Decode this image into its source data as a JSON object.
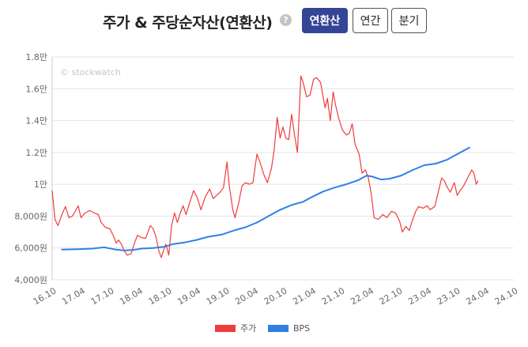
{
  "header": {
    "title": "주가 & 주당순자산(연환산)",
    "help_glyph": "?",
    "tabs": [
      {
        "label": "연환산",
        "active": true
      },
      {
        "label": "연간",
        "active": false
      },
      {
        "label": "분기",
        "active": false
      }
    ]
  },
  "colors": {
    "price": "#f03c3c",
    "bps": "#2f80e4",
    "active_tab": "#344595"
  },
  "chart_data": {
    "type": "line",
    "watermark": "© stockwatch",
    "y_ticks": [
      {
        "v": 4000,
        "label": "4,000원"
      },
      {
        "v": 6000,
        "label": "6,000원"
      },
      {
        "v": 8000,
        "label": "8,000원"
      },
      {
        "v": 10000,
        "label": "1만"
      },
      {
        "v": 12000,
        "label": "1.2만"
      },
      {
        "v": 14000,
        "label": "1.4만"
      },
      {
        "v": 16000,
        "label": "1.6만"
      },
      {
        "v": 18000,
        "label": "1.8만"
      }
    ],
    "ylim": [
      4000,
      18000
    ],
    "x_ticks": [
      {
        "t": 2016.75,
        "label": "16.10"
      },
      {
        "t": 2017.25,
        "label": "17.04"
      },
      {
        "t": 2017.75,
        "label": "17.10"
      },
      {
        "t": 2018.25,
        "label": "18.04"
      },
      {
        "t": 2018.75,
        "label": "18.10"
      },
      {
        "t": 2019.25,
        "label": "19.04"
      },
      {
        "t": 2019.75,
        "label": "19.10"
      },
      {
        "t": 2020.25,
        "label": "20.04"
      },
      {
        "t": 2020.75,
        "label": "20.10"
      },
      {
        "t": 2021.25,
        "label": "21.04"
      },
      {
        "t": 2021.75,
        "label": "21.10"
      },
      {
        "t": 2022.25,
        "label": "22.04"
      },
      {
        "t": 2022.75,
        "label": "22.10"
      },
      {
        "t": 2023.25,
        "label": "23.04"
      },
      {
        "t": 2023.75,
        "label": "23.10"
      },
      {
        "t": 2024.25,
        "label": "24.04"
      },
      {
        "t": 2024.75,
        "label": "24.10"
      }
    ],
    "xlim": [
      2016.75,
      2024.75
    ],
    "series": [
      {
        "name": "주가",
        "color": "#f03c3c",
        "points": [
          [
            2016.75,
            9600
          ],
          [
            2016.8,
            7800
          ],
          [
            2016.85,
            7400
          ],
          [
            2016.92,
            8100
          ],
          [
            2016.98,
            8600
          ],
          [
            2017.04,
            7900
          ],
          [
            2017.1,
            8000
          ],
          [
            2017.15,
            8300
          ],
          [
            2017.2,
            8650
          ],
          [
            2017.25,
            7900
          ],
          [
            2017.32,
            8200
          ],
          [
            2017.4,
            8350
          ],
          [
            2017.48,
            8200
          ],
          [
            2017.55,
            8100
          ],
          [
            2017.6,
            7600
          ],
          [
            2017.67,
            7300
          ],
          [
            2017.75,
            7200
          ],
          [
            2017.82,
            6700
          ],
          [
            2017.86,
            6300
          ],
          [
            2017.9,
            6500
          ],
          [
            2017.95,
            6250
          ],
          [
            2018.0,
            5800
          ],
          [
            2018.05,
            5550
          ],
          [
            2018.12,
            5650
          ],
          [
            2018.18,
            6350
          ],
          [
            2018.23,
            6800
          ],
          [
            2018.3,
            6650
          ],
          [
            2018.37,
            6600
          ],
          [
            2018.45,
            7400
          ],
          [
            2018.5,
            7200
          ],
          [
            2018.55,
            6700
          ],
          [
            2018.6,
            5800
          ],
          [
            2018.64,
            5400
          ],
          [
            2018.68,
            5850
          ],
          [
            2018.72,
            6250
          ],
          [
            2018.77,
            5550
          ],
          [
            2018.82,
            7400
          ],
          [
            2018.87,
            8200
          ],
          [
            2018.92,
            7600
          ],
          [
            2018.97,
            8200
          ],
          [
            2019.02,
            8650
          ],
          [
            2019.07,
            8100
          ],
          [
            2019.13,
            8800
          ],
          [
            2019.2,
            9600
          ],
          [
            2019.26,
            9200
          ],
          [
            2019.33,
            8400
          ],
          [
            2019.4,
            9200
          ],
          [
            2019.48,
            9700
          ],
          [
            2019.54,
            9100
          ],
          [
            2019.6,
            9300
          ],
          [
            2019.66,
            9500
          ],
          [
            2019.72,
            9800
          ],
          [
            2019.78,
            11400
          ],
          [
            2019.82,
            9900
          ],
          [
            2019.88,
            8400
          ],
          [
            2019.92,
            7900
          ],
          [
            2019.98,
            8800
          ],
          [
            2020.04,
            9900
          ],
          [
            2020.1,
            10100
          ],
          [
            2020.17,
            10000
          ],
          [
            2020.23,
            10100
          ],
          [
            2020.3,
            11900
          ],
          [
            2020.36,
            11300
          ],
          [
            2020.42,
            10600
          ],
          [
            2020.48,
            10100
          ],
          [
            2020.55,
            11000
          ],
          [
            2020.6,
            12200
          ],
          [
            2020.65,
            14200
          ],
          [
            2020.7,
            12900
          ],
          [
            2020.75,
            13600
          ],
          [
            2020.8,
            12900
          ],
          [
            2020.85,
            12800
          ],
          [
            2020.9,
            14400
          ],
          [
            2020.95,
            13100
          ],
          [
            2021.0,
            12000
          ],
          [
            2021.06,
            16800
          ],
          [
            2021.1,
            16400
          ],
          [
            2021.16,
            15500
          ],
          [
            2021.22,
            15600
          ],
          [
            2021.28,
            16600
          ],
          [
            2021.33,
            16700
          ],
          [
            2021.4,
            16400
          ],
          [
            2021.44,
            15600
          ],
          [
            2021.48,
            14800
          ],
          [
            2021.52,
            15400
          ],
          [
            2021.57,
            14000
          ],
          [
            2021.62,
            15800
          ],
          [
            2021.66,
            15000
          ],
          [
            2021.72,
            14100
          ],
          [
            2021.78,
            13400
          ],
          [
            2021.85,
            13100
          ],
          [
            2021.9,
            13200
          ],
          [
            2021.95,
            13800
          ],
          [
            2022.0,
            12500
          ],
          [
            2022.07,
            11900
          ],
          [
            2022.12,
            10700
          ],
          [
            2022.18,
            10900
          ],
          [
            2022.23,
            10400
          ],
          [
            2022.28,
            9400
          ],
          [
            2022.33,
            7900
          ],
          [
            2022.4,
            7800
          ],
          [
            2022.48,
            8100
          ],
          [
            2022.55,
            7900
          ],
          [
            2022.63,
            8300
          ],
          [
            2022.7,
            8200
          ],
          [
            2022.77,
            7700
          ],
          [
            2022.82,
            7000
          ],
          [
            2022.88,
            7350
          ],
          [
            2022.94,
            7100
          ],
          [
            2022.98,
            7600
          ],
          [
            2023.05,
            8300
          ],
          [
            2023.1,
            8600
          ],
          [
            2023.18,
            8500
          ],
          [
            2023.25,
            8650
          ],
          [
            2023.3,
            8400
          ],
          [
            2023.38,
            8600
          ],
          [
            2023.44,
            9500
          ],
          [
            2023.5,
            10400
          ],
          [
            2023.55,
            10200
          ],
          [
            2023.6,
            9800
          ],
          [
            2023.65,
            9500
          ],
          [
            2023.72,
            10100
          ],
          [
            2023.77,
            9300
          ],
          [
            2023.82,
            9600
          ],
          [
            2023.88,
            9900
          ],
          [
            2023.95,
            10400
          ],
          [
            2024.02,
            10900
          ],
          [
            2024.06,
            10700
          ],
          [
            2024.1,
            10000
          ],
          [
            2024.13,
            10200
          ]
        ]
      },
      {
        "name": "BPS",
        "color": "#2f80e4",
        "points": [
          [
            2016.92,
            5900
          ],
          [
            2017.2,
            5920
          ],
          [
            2017.45,
            5960
          ],
          [
            2017.65,
            6040
          ],
          [
            2017.85,
            5900
          ],
          [
            2018.0,
            5840
          ],
          [
            2018.15,
            5870
          ],
          [
            2018.3,
            5960
          ],
          [
            2018.5,
            6000
          ],
          [
            2018.7,
            6080
          ],
          [
            2018.85,
            6250
          ],
          [
            2019.05,
            6350
          ],
          [
            2019.25,
            6500
          ],
          [
            2019.45,
            6700
          ],
          [
            2019.7,
            6850
          ],
          [
            2019.9,
            7100
          ],
          [
            2020.1,
            7300
          ],
          [
            2020.3,
            7600
          ],
          [
            2020.5,
            8000
          ],
          [
            2020.7,
            8400
          ],
          [
            2020.9,
            8700
          ],
          [
            2021.1,
            8900
          ],
          [
            2021.25,
            9200
          ],
          [
            2021.45,
            9550
          ],
          [
            2021.65,
            9800
          ],
          [
            2021.85,
            10000
          ],
          [
            2022.05,
            10250
          ],
          [
            2022.2,
            10550
          ],
          [
            2022.3,
            10480
          ],
          [
            2022.45,
            10300
          ],
          [
            2022.6,
            10350
          ],
          [
            2022.8,
            10550
          ],
          [
            2023.0,
            10900
          ],
          [
            2023.2,
            11200
          ],
          [
            2023.4,
            11300
          ],
          [
            2023.6,
            11550
          ],
          [
            2023.8,
            11950
          ],
          [
            2023.98,
            12300
          ]
        ]
      }
    ]
  }
}
